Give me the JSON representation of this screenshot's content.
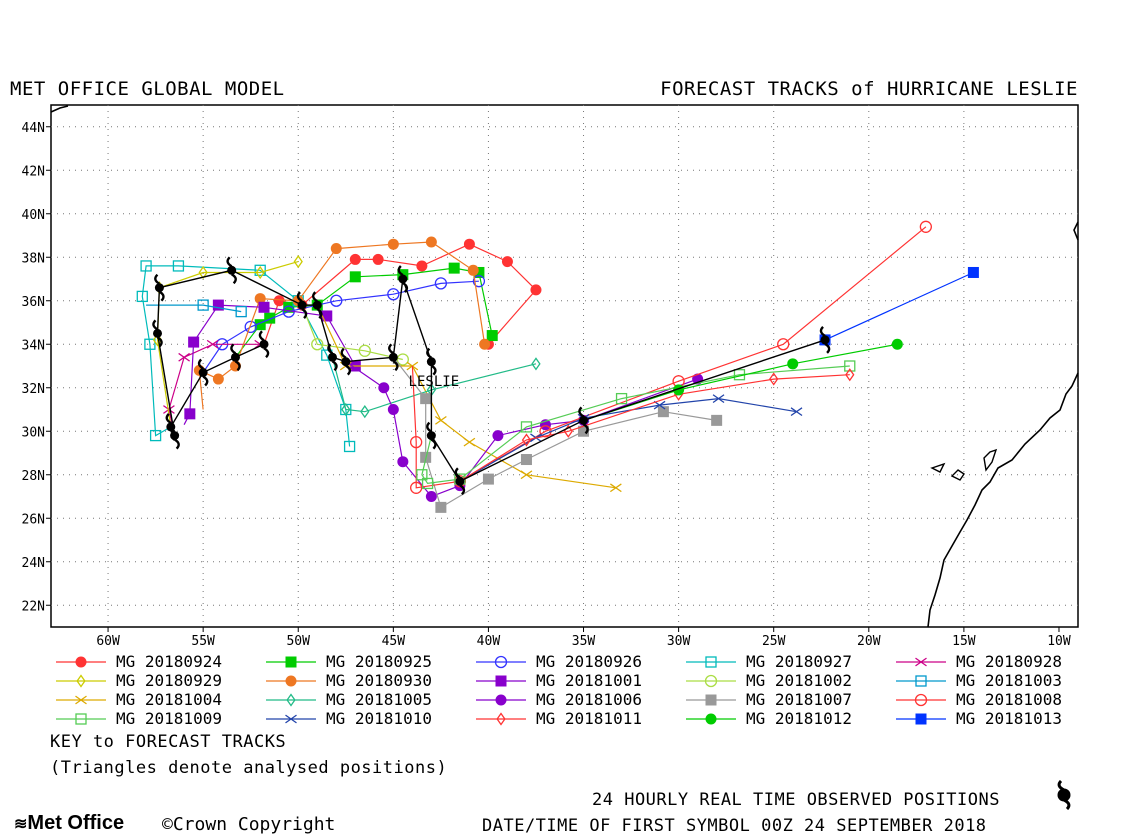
{
  "header": {
    "left_title": "MET OFFICE GLOBAL MODEL",
    "right_title": "FORECAST TRACKS of HURRICANE LESLIE"
  },
  "footer": {
    "key_title": "KEY to FORECAST TRACKS",
    "key_note": "(Triangles denote analysed positions)",
    "observed_note": "24 HOURLY REAL TIME OBSERVED POSITIONS",
    "date_note": "DATE/TIME OF FIRST SYMBOL 00Z 24 SEPTEMBER 2018",
    "logo": "Met Office",
    "copyright": "Crown Copyright"
  },
  "chart_data": {
    "type": "line",
    "title": "FORECAST TRACKS of HURRICANE LESLIE",
    "xlabel": "",
    "ylabel": "",
    "xlim": [
      -63,
      -9
    ],
    "ylim": [
      21,
      45
    ],
    "grid": true,
    "x_ticks": [
      "60W",
      "55W",
      "50W",
      "45W",
      "40W",
      "35W",
      "30W",
      "25W",
      "20W",
      "15W",
      "10W"
    ],
    "y_ticks": [
      "22N",
      "24N",
      "26N",
      "28N",
      "30N",
      "32N",
      "34N",
      "36N",
      "38N",
      "40N",
      "42N",
      "44N"
    ],
    "storm_label": {
      "text": "LESLIE",
      "lon": -44.2,
      "lat": 32.3
    },
    "observed_track": [
      [
        -51.8,
        34.0
      ],
      [
        -53.3,
        33.4
      ],
      [
        -55.0,
        32.7
      ],
      [
        -56.7,
        30.2
      ],
      [
        -56.5,
        29.8
      ],
      [
        -57.4,
        34.5
      ],
      [
        -57.3,
        36.6
      ],
      [
        -53.5,
        37.4
      ],
      [
        -49.8,
        35.8
      ],
      [
        -49.0,
        35.8
      ],
      [
        -48.2,
        33.4
      ],
      [
        -47.5,
        33.2
      ],
      [
        -45.0,
        33.4
      ],
      [
        -44.5,
        37.0
      ],
      [
        -43.0,
        33.2
      ],
      [
        -43.0,
        29.8
      ],
      [
        -41.5,
        27.7
      ],
      [
        -35.0,
        30.5
      ],
      [
        -22.3,
        34.2
      ]
    ],
    "series": [
      {
        "name": "MG 20180924",
        "color": "#ff3333",
        "marker": "circle-filled",
        "points": [
          [
            -51.8,
            34.0
          ],
          [
            -51.0,
            36.0
          ],
          [
            -49.8,
            35.8
          ],
          [
            -47.0,
            37.9
          ],
          [
            -45.8,
            37.9
          ],
          [
            -43.5,
            37.6
          ],
          [
            -41.0,
            38.6
          ],
          [
            -39.0,
            37.8
          ],
          [
            -37.5,
            36.5
          ],
          [
            -40.0,
            34.0
          ]
        ]
      },
      {
        "name": "MG 20180925",
        "color": "#00cc00",
        "marker": "square-filled",
        "points": [
          [
            -53.3,
            33.4
          ],
          [
            -52.0,
            34.9
          ],
          [
            -51.5,
            35.2
          ],
          [
            -50.5,
            35.7
          ],
          [
            -49.0,
            35.8
          ],
          [
            -47.0,
            37.1
          ],
          [
            -44.5,
            37.2
          ],
          [
            -41.8,
            37.5
          ],
          [
            -40.5,
            37.3
          ],
          [
            -39.8,
            34.4
          ]
        ]
      },
      {
        "name": "MG 20180926",
        "color": "#3333ff",
        "marker": "circle-open",
        "points": [
          [
            -55.0,
            32.7
          ],
          [
            -54.0,
            34.0
          ],
          [
            -52.5,
            34.8
          ],
          [
            -50.5,
            35.5
          ],
          [
            -48.0,
            36.0
          ],
          [
            -45.0,
            36.3
          ],
          [
            -42.5,
            36.8
          ],
          [
            -40.5,
            36.9
          ]
        ]
      },
      {
        "name": "MG 20180927",
        "color": "#00bbbb",
        "marker": "square-open",
        "points": [
          [
            -56.7,
            30.2
          ],
          [
            -57.5,
            29.8
          ],
          [
            -57.8,
            34.0
          ],
          [
            -58.2,
            36.2
          ],
          [
            -58.0,
            37.6
          ],
          [
            -56.3,
            37.6
          ],
          [
            -52.0,
            37.4
          ],
          [
            -50.0,
            36.0
          ],
          [
            -48.5,
            33.5
          ],
          [
            -47.5,
            31.0
          ],
          [
            -47.3,
            29.3
          ]
        ]
      },
      {
        "name": "MG 20180928",
        "color": "#cc0088",
        "marker": "x",
        "points": [
          [
            -56.5,
            29.8
          ],
          [
            -56.8,
            31.0
          ],
          [
            -56.0,
            33.4
          ],
          [
            -54.5,
            34.0
          ],
          [
            -52.0,
            34.0
          ]
        ]
      },
      {
        "name": "MG 20180929",
        "color": "#cccc00",
        "marker": "diamond-open",
        "points": [
          [
            -56.7,
            30.2
          ],
          [
            -57.4,
            34.2
          ],
          [
            -57.3,
            36.6
          ],
          [
            -55.0,
            37.3
          ],
          [
            -52.0,
            37.3
          ],
          [
            -50.0,
            37.8
          ]
        ]
      },
      {
        "name": "MG 20180930",
        "color": "#ee7722",
        "marker": "circle-filled",
        "points": [
          [
            -55.0,
            31.0
          ],
          [
            -55.2,
            32.8
          ],
          [
            -54.2,
            32.4
          ],
          [
            -53.3,
            33.0
          ],
          [
            -52.0,
            36.1
          ],
          [
            -50.0,
            36.0
          ],
          [
            -48.0,
            38.4
          ],
          [
            -45.0,
            38.6
          ],
          [
            -43.0,
            38.7
          ],
          [
            -40.8,
            37.4
          ],
          [
            -40.2,
            34.0
          ]
        ]
      },
      {
        "name": "MG 20181001",
        "color": "#8800cc",
        "marker": "square-filled",
        "points": [
          [
            -56.0,
            30.3
          ],
          [
            -55.7,
            30.8
          ],
          [
            -55.5,
            34.1
          ],
          [
            -54.2,
            35.8
          ],
          [
            -51.8,
            35.7
          ],
          [
            -48.5,
            35.3
          ],
          [
            -47.0,
            33.0
          ]
        ]
      },
      {
        "name": "MG 20181002",
        "color": "#aadd44",
        "marker": "circle-open",
        "points": [
          [
            -49.8,
            35.8
          ],
          [
            -49.0,
            34.0
          ],
          [
            -46.5,
            33.7
          ],
          [
            -44.5,
            33.3
          ]
        ]
      },
      {
        "name": "MG 20181003",
        "color": "#0099cc",
        "marker": "square-open",
        "points": [
          [
            -58.0,
            35.8
          ],
          [
            -55.0,
            35.8
          ],
          [
            -53.0,
            35.5
          ]
        ]
      },
      {
        "name": "MG 20181004",
        "color": "#ddaa00",
        "marker": "x",
        "points": [
          [
            -49.0,
            35.8
          ],
          [
            -47.5,
            33.0
          ],
          [
            -44.0,
            33.0
          ],
          [
            -42.5,
            30.5
          ],
          [
            -41.0,
            29.5
          ],
          [
            -38.0,
            28.0
          ],
          [
            -33.3,
            27.4
          ]
        ]
      },
      {
        "name": "MG 20181005",
        "color": "#22bb88",
        "marker": "diamond-open",
        "points": [
          [
            -48.2,
            33.4
          ],
          [
            -47.5,
            31.0
          ],
          [
            -46.5,
            30.9
          ],
          [
            -43.0,
            31.9
          ],
          [
            -37.5,
            33.1
          ]
        ]
      },
      {
        "name": "MG 20181006",
        "color": "#8800cc",
        "marker": "circle-filled",
        "points": [
          [
            -47.5,
            33.2
          ],
          [
            -45.5,
            32.0
          ],
          [
            -45.0,
            31.0
          ],
          [
            -44.5,
            28.6
          ],
          [
            -43.0,
            27.0
          ],
          [
            -41.5,
            27.5
          ],
          [
            -39.5,
            29.8
          ],
          [
            -37.0,
            30.3
          ],
          [
            -35.0,
            30.5
          ],
          [
            -29.0,
            32.4
          ]
        ]
      },
      {
        "name": "MG 20181007",
        "color": "#999999",
        "marker": "square-filled",
        "points": [
          [
            -45.0,
            33.4
          ],
          [
            -43.3,
            31.5
          ],
          [
            -43.3,
            28.8
          ],
          [
            -42.5,
            26.5
          ],
          [
            -40.0,
            27.8
          ],
          [
            -38.0,
            28.7
          ],
          [
            -35.0,
            30.0
          ],
          [
            -30.8,
            30.9
          ],
          [
            -28.0,
            30.5
          ]
        ]
      },
      {
        "name": "MG 20181008",
        "color": "#ff3333",
        "marker": "circle-open",
        "points": [
          [
            -44.0,
            33.0
          ],
          [
            -43.8,
            29.5
          ],
          [
            -43.8,
            27.4
          ],
          [
            -41.5,
            27.7
          ],
          [
            -37.0,
            30.0
          ],
          [
            -30.0,
            32.3
          ],
          [
            -24.5,
            34.0
          ],
          [
            -17.0,
            39.4
          ]
        ]
      },
      {
        "name": "MG 20181009",
        "color": "#55cc55",
        "marker": "square-open",
        "points": [
          [
            -43.0,
            29.8
          ],
          [
            -43.5,
            28.0
          ],
          [
            -43.2,
            27.6
          ],
          [
            -41.5,
            27.8
          ],
          [
            -38.0,
            30.2
          ],
          [
            -33.0,
            31.5
          ],
          [
            -26.8,
            32.6
          ],
          [
            -21.0,
            33.0
          ]
        ]
      },
      {
        "name": "MG 20181010",
        "color": "#2244aa",
        "marker": "x",
        "points": [
          [
            -41.5,
            27.7
          ],
          [
            -37.5,
            29.7
          ],
          [
            -35.0,
            30.6
          ],
          [
            -31.0,
            31.2
          ],
          [
            -27.9,
            31.5
          ],
          [
            -23.8,
            30.9
          ]
        ]
      },
      {
        "name": "MG 20181011",
        "color": "#ff3333",
        "marker": "diamond-open",
        "points": [
          [
            -41.5,
            27.7
          ],
          [
            -38.0,
            29.6
          ],
          [
            -35.8,
            30.0
          ],
          [
            -30.0,
            31.7
          ],
          [
            -25.0,
            32.4
          ],
          [
            -21.0,
            32.6
          ]
        ]
      },
      {
        "name": "MG 20181012",
        "color": "#00cc00",
        "marker": "circle-filled",
        "points": [
          [
            -35.0,
            30.5
          ],
          [
            -30.0,
            31.9
          ],
          [
            -24.0,
            33.1
          ],
          [
            -18.5,
            34.0
          ]
        ]
      },
      {
        "name": "MG 20181013",
        "color": "#0033ff",
        "marker": "square-filled",
        "points": [
          [
            -22.3,
            34.2
          ],
          [
            -14.5,
            37.3
          ]
        ]
      }
    ]
  }
}
